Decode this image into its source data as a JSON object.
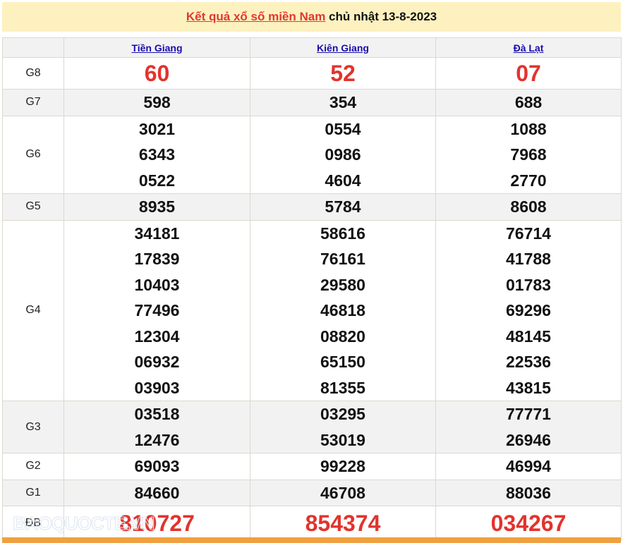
{
  "header": {
    "link_text": "Kết quả xổ số miền Nam",
    "rest_text": " chủ nhật 13-8-2023"
  },
  "provinces": [
    "Tiền Giang",
    "Kiên Giang",
    "Đà Lạt"
  ],
  "prizes": [
    {
      "label": "G8",
      "style": "big",
      "values": [
        [
          "60"
        ],
        [
          "52"
        ],
        [
          "07"
        ]
      ]
    },
    {
      "label": "G7",
      "style": "num",
      "values": [
        [
          "598"
        ],
        [
          "354"
        ],
        [
          "688"
        ]
      ]
    },
    {
      "label": "G6",
      "style": "num",
      "values": [
        [
          "3021",
          "6343",
          "0522"
        ],
        [
          "0554",
          "0986",
          "4604"
        ],
        [
          "1088",
          "7968",
          "2770"
        ]
      ]
    },
    {
      "label": "G5",
      "style": "num",
      "values": [
        [
          "8935"
        ],
        [
          "5784"
        ],
        [
          "8608"
        ]
      ]
    },
    {
      "label": "G4",
      "style": "num",
      "values": [
        [
          "34181",
          "17839",
          "10403",
          "77496",
          "12304",
          "06932",
          "03903"
        ],
        [
          "58616",
          "76161",
          "29580",
          "46818",
          "08820",
          "65150",
          "81355"
        ],
        [
          "76714",
          "41788",
          "01783",
          "69296",
          "48145",
          "22536",
          "43815"
        ]
      ]
    },
    {
      "label": "G3",
      "style": "num",
      "values": [
        [
          "03518",
          "12476"
        ],
        [
          "03295",
          "53019"
        ],
        [
          "77771",
          "26946"
        ]
      ]
    },
    {
      "label": "G2",
      "style": "num",
      "values": [
        [
          "69093"
        ],
        [
          "99228"
        ],
        [
          "46994"
        ]
      ]
    },
    {
      "label": "G1",
      "style": "num",
      "values": [
        [
          "84660"
        ],
        [
          "46708"
        ],
        [
          "88036"
        ]
      ]
    },
    {
      "label": "ĐB",
      "style": "db",
      "values": [
        [
          "810727"
        ],
        [
          "854374"
        ],
        [
          "034267"
        ]
      ]
    }
  ],
  "watermark": "BAOQUOCTE.VN",
  "colors": {
    "title_bg": "#fdf1c0",
    "red": "#e2332d",
    "link": "#1a0dab",
    "bottom_bar": "#f0a040"
  }
}
